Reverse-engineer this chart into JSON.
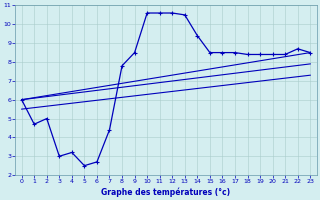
{
  "title": "Graphe des températures (°c)",
  "bg_color": "#d4eef0",
  "line_color": "#0000bb",
  "xlim": [
    -0.5,
    23.5
  ],
  "ylim": [
    2,
    11
  ],
  "xticks": [
    0,
    1,
    2,
    3,
    4,
    5,
    6,
    7,
    8,
    9,
    10,
    11,
    12,
    13,
    14,
    15,
    16,
    17,
    18,
    19,
    20,
    21,
    22,
    23
  ],
  "yticks": [
    2,
    3,
    4,
    5,
    6,
    7,
    8,
    9,
    10,
    11
  ],
  "curve1_x": [
    0,
    1,
    2,
    3,
    4,
    5,
    6,
    7,
    8,
    9,
    10,
    11,
    12,
    13,
    14,
    15,
    16,
    17,
    18,
    19,
    20,
    21,
    22,
    23
  ],
  "curve1_y": [
    6.0,
    4.7,
    5.0,
    3.0,
    3.2,
    2.5,
    2.7,
    4.4,
    7.8,
    8.5,
    10.6,
    10.6,
    10.6,
    10.5,
    9.4,
    8.5,
    8.5,
    8.5,
    8.4,
    8.4,
    8.4,
    8.4,
    8.7,
    8.5
  ],
  "curve2_x": [
    0,
    23
  ],
  "curve2_y": [
    6.0,
    8.5
  ],
  "curve3_x": [
    0,
    23
  ],
  "curve3_y": [
    6.0,
    7.9
  ],
  "curve4_x": [
    0,
    23
  ],
  "curve4_y": [
    5.5,
    7.3
  ]
}
